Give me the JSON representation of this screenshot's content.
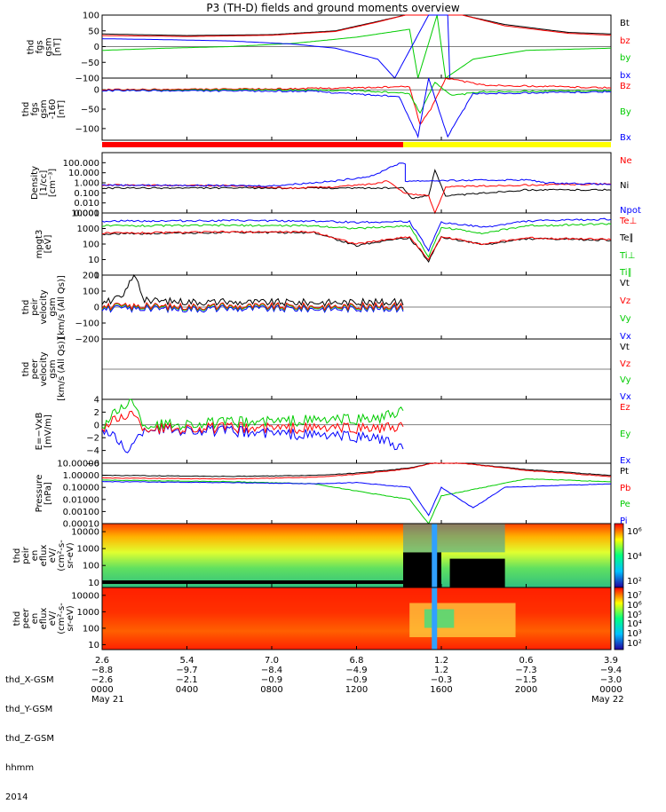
{
  "title": "P3 (TH-D) fields and ground moments overview",
  "panels": [
    {
      "id": "fgs",
      "ylabel": [
        "thd",
        "fgs",
        "gsm",
        "[nT]"
      ],
      "ylim": [
        -100,
        100
      ],
      "yticks": [
        100,
        50,
        0,
        -50,
        -100
      ],
      "ytick_labels": [
        "100",
        "50",
        "0",
        "−50",
        "−100"
      ],
      "legend": [
        {
          "t": "Bt",
          "c": "#000000"
        },
        {
          "t": "bz",
          "c": "#ff0000"
        },
        {
          "t": "by",
          "c": "#00cc00"
        },
        {
          "t": "bx",
          "c": "#0000ff"
        }
      ]
    },
    {
      "id": "fgs-avg",
      "ylabel": [
        "thd",
        "fgs",
        "gsm",
        "-160",
        "[nT]"
      ],
      "ylim": [
        -130,
        30
      ],
      "yticks": [
        0,
        -50,
        -100
      ],
      "ytick_labels": [
        "0",
        "−50",
        "−100"
      ],
      "legend": [
        {
          "t": "Bz",
          "c": "#ff0000"
        },
        {
          "t": "By",
          "c": "#00cc00"
        },
        {
          "t": "Bx",
          "c": "#0000ff"
        }
      ]
    },
    {
      "id": "density",
      "ylabel": [
        "Density",
        "[1/cc]",
        "[cm⁻³]"
      ],
      "ylim": [
        0.001,
        1000
      ],
      "log": true,
      "ytick_labels": [
        "100.000",
        "10.000",
        "1.000",
        "0.100",
        "0.010",
        "0.001"
      ],
      "legend": [
        {
          "t": "Ne",
          "c": "#ff0000"
        },
        {
          "t": "Ni",
          "c": "#000000"
        },
        {
          "t": "Npot",
          "c": "#0000ff"
        }
      ]
    },
    {
      "id": "temperature",
      "ylabel": [
        "mpgt3",
        "[eV]"
      ],
      "ylim": [
        1,
        10000
      ],
      "log": true,
      "ytick_labels": [
        "10000",
        "1000",
        "100",
        "10",
        "1"
      ],
      "legend": [
        {
          "t": "Te⊥",
          "c": "#ff0000"
        },
        {
          "t": "Te∥",
          "c": "#000000"
        },
        {
          "t": "Ti⊥",
          "c": "#00cc00"
        },
        {
          "t": "Ti∥",
          "c": "#00cc00"
        }
      ]
    },
    {
      "id": "peir-velocity",
      "ylabel": [
        "thd",
        "peir",
        "velocity",
        "gsm",
        "[km/s (All Qs)]"
      ],
      "ylim": [
        -200,
        200
      ],
      "yticks": [
        200,
        100,
        0,
        -100,
        -200
      ],
      "ytick_labels": [
        "200",
        "100",
        "0",
        "−100",
        "−200"
      ],
      "legend": [
        {
          "t": "Vt",
          "c": "#000000"
        },
        {
          "t": "Vz",
          "c": "#ff0000"
        },
        {
          "t": "Vy",
          "c": "#00cc00"
        },
        {
          "t": "Vx",
          "c": "#0000ff"
        }
      ]
    },
    {
      "id": "peer-velocity",
      "ylabel": [
        "thd",
        "peer",
        "velocity",
        "gsm",
        "[km/s (All Qs)]"
      ],
      "ylim": [
        -200,
        200
      ],
      "yticks": [],
      "ytick_labels": [],
      "legend": [
        {
          "t": "Vt",
          "c": "#000000"
        },
        {
          "t": "Vz",
          "c": "#ff0000"
        },
        {
          "t": "Vy",
          "c": "#00cc00"
        },
        {
          "t": "Vx",
          "c": "#0000ff"
        }
      ]
    },
    {
      "id": "efield",
      "ylabel": [
        "E=−VxB",
        "[mV/m]"
      ],
      "ylim": [
        -6,
        4
      ],
      "yticks": [
        4,
        2,
        0,
        -2,
        -4,
        -6
      ],
      "ytick_labels": [
        "4",
        "2",
        "0",
        "−2",
        "−4",
        "−6"
      ],
      "legend": [
        {
          "t": "Ez",
          "c": "#ff0000"
        },
        {
          "t": "Ey",
          "c": "#00cc00"
        },
        {
          "t": "Ex",
          "c": "#0000ff"
        }
      ]
    },
    {
      "id": "pressure",
      "ylabel": [
        "Pressure",
        "[nPa]"
      ],
      "ylim": [
        0.0001,
        10
      ],
      "log": true,
      "ytick_labels": [
        "10.00000",
        "1.00000",
        "0.10000",
        "0.01000",
        "0.00100",
        "0.00010"
      ],
      "legend": [
        {
          "t": "Pt",
          "c": "#000000"
        },
        {
          "t": "Pb",
          "c": "#ff0000"
        },
        {
          "t": "Pe",
          "c": "#00cc00"
        },
        {
          "t": "Pi",
          "c": "#0000ff"
        }
      ]
    },
    {
      "id": "peir-spec",
      "ylabel": [
        "thd",
        "peir",
        "en",
        "eflux",
        "eV/",
        "(cm²-s-",
        "sr-eV)"
      ],
      "ylim": [
        5,
        30000
      ],
      "log": true,
      "ytick_labels": [
        "10000",
        "1000",
        "100",
        "10"
      ],
      "colorbar_labels": [
        "10⁶",
        "10⁴",
        "10²"
      ]
    },
    {
      "id": "peer-spec",
      "ylabel": [
        "thd",
        "peer",
        "en",
        "eflux",
        "eV/",
        "(cm²-s-",
        "sr-eV)"
      ],
      "ylim": [
        5,
        30000
      ],
      "log": true,
      "ytick_labels": [
        "10000",
        "1000",
        "100",
        "10"
      ],
      "colorbar_labels": [
        "10⁷",
        "10⁶",
        "10⁵",
        "10⁴",
        "10³",
        "10²"
      ]
    }
  ],
  "chart_data": {
    "type": "line",
    "title": "P3 (TH-D) fields and ground moments overview",
    "x": [
      "0000",
      "0400",
      "0800",
      "1200",
      "1600",
      "2000",
      "0000"
    ],
    "x_hours": [
      0,
      4,
      8,
      12,
      16,
      20,
      24
    ],
    "xlim_hours": [
      0,
      24
    ],
    "x_dates": {
      "start": "May 21",
      "end": "May 22",
      "year": "2014"
    },
    "ephemeris": {
      "labels": [
        "thd_X-GSM",
        "thd_Y-GSM",
        "thd_Z-GSM",
        "hhmm",
        "2014"
      ],
      "X": [
        "2.6",
        "5.4",
        "7.0",
        "6.8",
        "1.2",
        "0.6",
        "3.9"
      ],
      "Y": [
        "−8.8",
        "−9.7",
        "−8.4",
        "−4.9",
        "1.2",
        "−7.3",
        "−9.4"
      ],
      "Z": [
        "−2.6",
        "−2.1",
        "−0.9",
        "−0.9",
        "−0.3",
        "−1.5",
        "−3.0"
      ]
    },
    "series_fgs": {
      "Bt": [
        [
          0,
          40
        ],
        [
          4,
          35
        ],
        [
          8,
          38
        ],
        [
          11,
          50
        ],
        [
          13,
          80
        ],
        [
          14.3,
          100
        ],
        [
          17,
          100
        ],
        [
          19,
          70
        ],
        [
          22,
          45
        ],
        [
          24,
          40
        ]
      ],
      "bz": [
        [
          0,
          35
        ],
        [
          4,
          32
        ],
        [
          8,
          36
        ],
        [
          11,
          48
        ],
        [
          13,
          78
        ],
        [
          14.3,
          100
        ],
        [
          17,
          100
        ],
        [
          19,
          66
        ],
        [
          22,
          42
        ],
        [
          24,
          36
        ]
      ],
      "by": [
        [
          0,
          -12
        ],
        [
          3,
          -5
        ],
        [
          6,
          0
        ],
        [
          9,
          10
        ],
        [
          12,
          30
        ],
        [
          14.5,
          55
        ],
        [
          14.9,
          -100
        ],
        [
          15.8,
          100
        ],
        [
          16.2,
          -100
        ],
        [
          17.5,
          -40
        ],
        [
          20,
          -12
        ],
        [
          24,
          -5
        ]
      ],
      "bx": [
        [
          0,
          25
        ],
        [
          3,
          22
        ],
        [
          6,
          18
        ],
        [
          9,
          8
        ],
        [
          11,
          -5
        ],
        [
          13,
          -40
        ],
        [
          13.8,
          -100
        ],
        [
          15.4,
          100
        ],
        [
          16.3,
          100
        ],
        [
          16.4,
          -100
        ],
        [
          24,
          -100
        ]
      ]
    },
    "series_fgs_avg": {
      "Bz": [
        [
          0,
          0
        ],
        [
          8,
          2
        ],
        [
          12,
          5
        ],
        [
          14.5,
          8
        ],
        [
          15,
          -90
        ],
        [
          15.5,
          -50
        ],
        [
          16.2,
          30
        ],
        [
          18,
          12
        ],
        [
          24,
          5
        ]
      ],
      "By": [
        [
          0,
          -2
        ],
        [
          8,
          0
        ],
        [
          12,
          -2
        ],
        [
          14.5,
          -10
        ],
        [
          15,
          -60
        ],
        [
          15.7,
          20
        ],
        [
          16.5,
          -15
        ],
        [
          18,
          -5
        ],
        [
          24,
          -2
        ]
      ],
      "Bx": [
        [
          0,
          -2
        ],
        [
          10,
          -4
        ],
        [
          14,
          -18
        ],
        [
          14.9,
          -120
        ],
        [
          15.4,
          30
        ],
        [
          16.3,
          -120
        ],
        [
          17.5,
          -10
        ],
        [
          24,
          -5
        ]
      ]
    },
    "series_density": {
      "Ne": [
        [
          0,
          0.6
        ],
        [
          6,
          0.5
        ],
        [
          9,
          0.3
        ],
        [
          11,
          0.4
        ],
        [
          12.8,
          0.8
        ],
        [
          13.5,
          1.5
        ],
        [
          14.2,
          0.1
        ],
        [
          15.4,
          0.05
        ],
        [
          15.7,
          0.001
        ],
        [
          16.2,
          0.4
        ],
        [
          20,
          0.6
        ],
        [
          24,
          0.8
        ]
      ],
      "Ni": [
        [
          0,
          0.3
        ],
        [
          10,
          0.3
        ],
        [
          14.2,
          0.3
        ],
        [
          14.6,
          0.03
        ],
        [
          15.4,
          0.05
        ],
        [
          15.7,
          20
        ],
        [
          16.2,
          0.05
        ],
        [
          20,
          0.2
        ],
        [
          24,
          0.2
        ]
      ],
      "Npot": [
        [
          0,
          0.6
        ],
        [
          8,
          0.5
        ],
        [
          11,
          1.5
        ],
        [
          12.8,
          5
        ],
        [
          13.5,
          30
        ],
        [
          14,
          80
        ],
        [
          14.3,
          80
        ],
        [
          14.3,
          1.5
        ],
        [
          20,
          2
        ],
        [
          21,
          1
        ],
        [
          24,
          0.7
        ]
      ]
    },
    "series_temperature": {
      "Te_perp": [
        [
          0,
          500
        ],
        [
          6,
          600
        ],
        [
          10,
          600
        ],
        [
          12,
          100
        ],
        [
          13.5,
          200
        ],
        [
          14.5,
          300
        ],
        [
          15.4,
          10
        ],
        [
          16,
          300
        ],
        [
          18,
          100
        ],
        [
          20,
          250
        ],
        [
          24,
          200
        ]
      ],
      "Te_par": [
        [
          0,
          450
        ],
        [
          6,
          550
        ],
        [
          10,
          550
        ],
        [
          12,
          80
        ],
        [
          13.5,
          180
        ],
        [
          14.5,
          250
        ],
        [
          15.4,
          8
        ],
        [
          16,
          280
        ],
        [
          18,
          90
        ],
        [
          20,
          220
        ],
        [
          24,
          180
        ]
      ],
      "Ti_perp": [
        [
          0,
          1500
        ],
        [
          6,
          1600
        ],
        [
          10,
          1500
        ],
        [
          12,
          1000
        ],
        [
          14.5,
          1500
        ],
        [
          15.4,
          15
        ],
        [
          16,
          1200
        ],
        [
          18,
          500
        ],
        [
          20,
          1500
        ],
        [
          24,
          2000
        ]
      ],
      "Ti_par": [
        [
          0,
          3000
        ],
        [
          6,
          3200
        ],
        [
          10,
          3000
        ],
        [
          12,
          2500
        ],
        [
          14.5,
          2800
        ],
        [
          15.4,
          40
        ],
        [
          16,
          2500
        ],
        [
          18,
          1200
        ],
        [
          20,
          3000
        ],
        [
          24,
          4000
        ]
      ]
    },
    "series_peir_velocity": {
      "Vt": [
        [
          0,
          30
        ],
        [
          1,
          60
        ],
        [
          1.5,
          220
        ],
        [
          2,
          40
        ],
        [
          6,
          30
        ],
        [
          10,
          30
        ],
        [
          14.2,
          30
        ]
      ],
      "Vz": [
        [
          0,
          5
        ],
        [
          14.2,
          5
        ]
      ],
      "Vy": [
        [
          0,
          0
        ],
        [
          14.2,
          0
        ]
      ],
      "Vx": [
        [
          0,
          -10
        ],
        [
          14.2,
          -10
        ]
      ]
    },
    "series_efield": {
      "Ez": [
        [
          0,
          -0.5
        ],
        [
          1.3,
          2
        ],
        [
          2,
          -0.5
        ],
        [
          14.2,
          -0.5
        ]
      ],
      "Ey": [
        [
          0,
          -0.2
        ],
        [
          1.3,
          4
        ],
        [
          2,
          0
        ],
        [
          13,
          1
        ],
        [
          14.2,
          2
        ]
      ],
      "Ex": [
        [
          0,
          -0.5
        ],
        [
          1.3,
          -4
        ],
        [
          2,
          -0.5
        ],
        [
          13,
          -2
        ],
        [
          14.2,
          -4
        ]
      ]
    },
    "series_pressure": {
      "Pt": [
        [
          0,
          1
        ],
        [
          6,
          0.8
        ],
        [
          10,
          1
        ],
        [
          12,
          1.5
        ],
        [
          14.5,
          4
        ],
        [
          15.5,
          10
        ],
        [
          17,
          10
        ],
        [
          20,
          3
        ],
        [
          24,
          1
        ]
      ],
      "Pb": [
        [
          0,
          0.6
        ],
        [
          6,
          0.5
        ],
        [
          10,
          0.7
        ],
        [
          12,
          1.2
        ],
        [
          14.5,
          3.5
        ],
        [
          15.5,
          10
        ],
        [
          17,
          10
        ],
        [
          20,
          2.5
        ],
        [
          24,
          0.8
        ]
      ],
      "Pe": [
        [
          0,
          0.4
        ],
        [
          6,
          0.3
        ],
        [
          10,
          0.2
        ],
        [
          12,
          0.05
        ],
        [
          14.5,
          0.01
        ],
        [
          15.4,
          0.0001
        ],
        [
          16,
          0.02
        ],
        [
          18,
          0.1
        ],
        [
          20,
          0.5
        ],
        [
          24,
          0.3
        ]
      ],
      "Pi": [
        [
          0,
          0.3
        ],
        [
          6,
          0.25
        ],
        [
          10,
          0.2
        ],
        [
          12,
          0.25
        ],
        [
          14.5,
          0.1
        ],
        [
          15.4,
          0.0005
        ],
        [
          16,
          0.1
        ],
        [
          17.5,
          0.002
        ],
        [
          19,
          0.1
        ],
        [
          24,
          0.2
        ]
      ]
    },
    "mode_bar": {
      "red": [
        0,
        14.2
      ],
      "yellow": [
        14.2,
        24
      ]
    }
  }
}
